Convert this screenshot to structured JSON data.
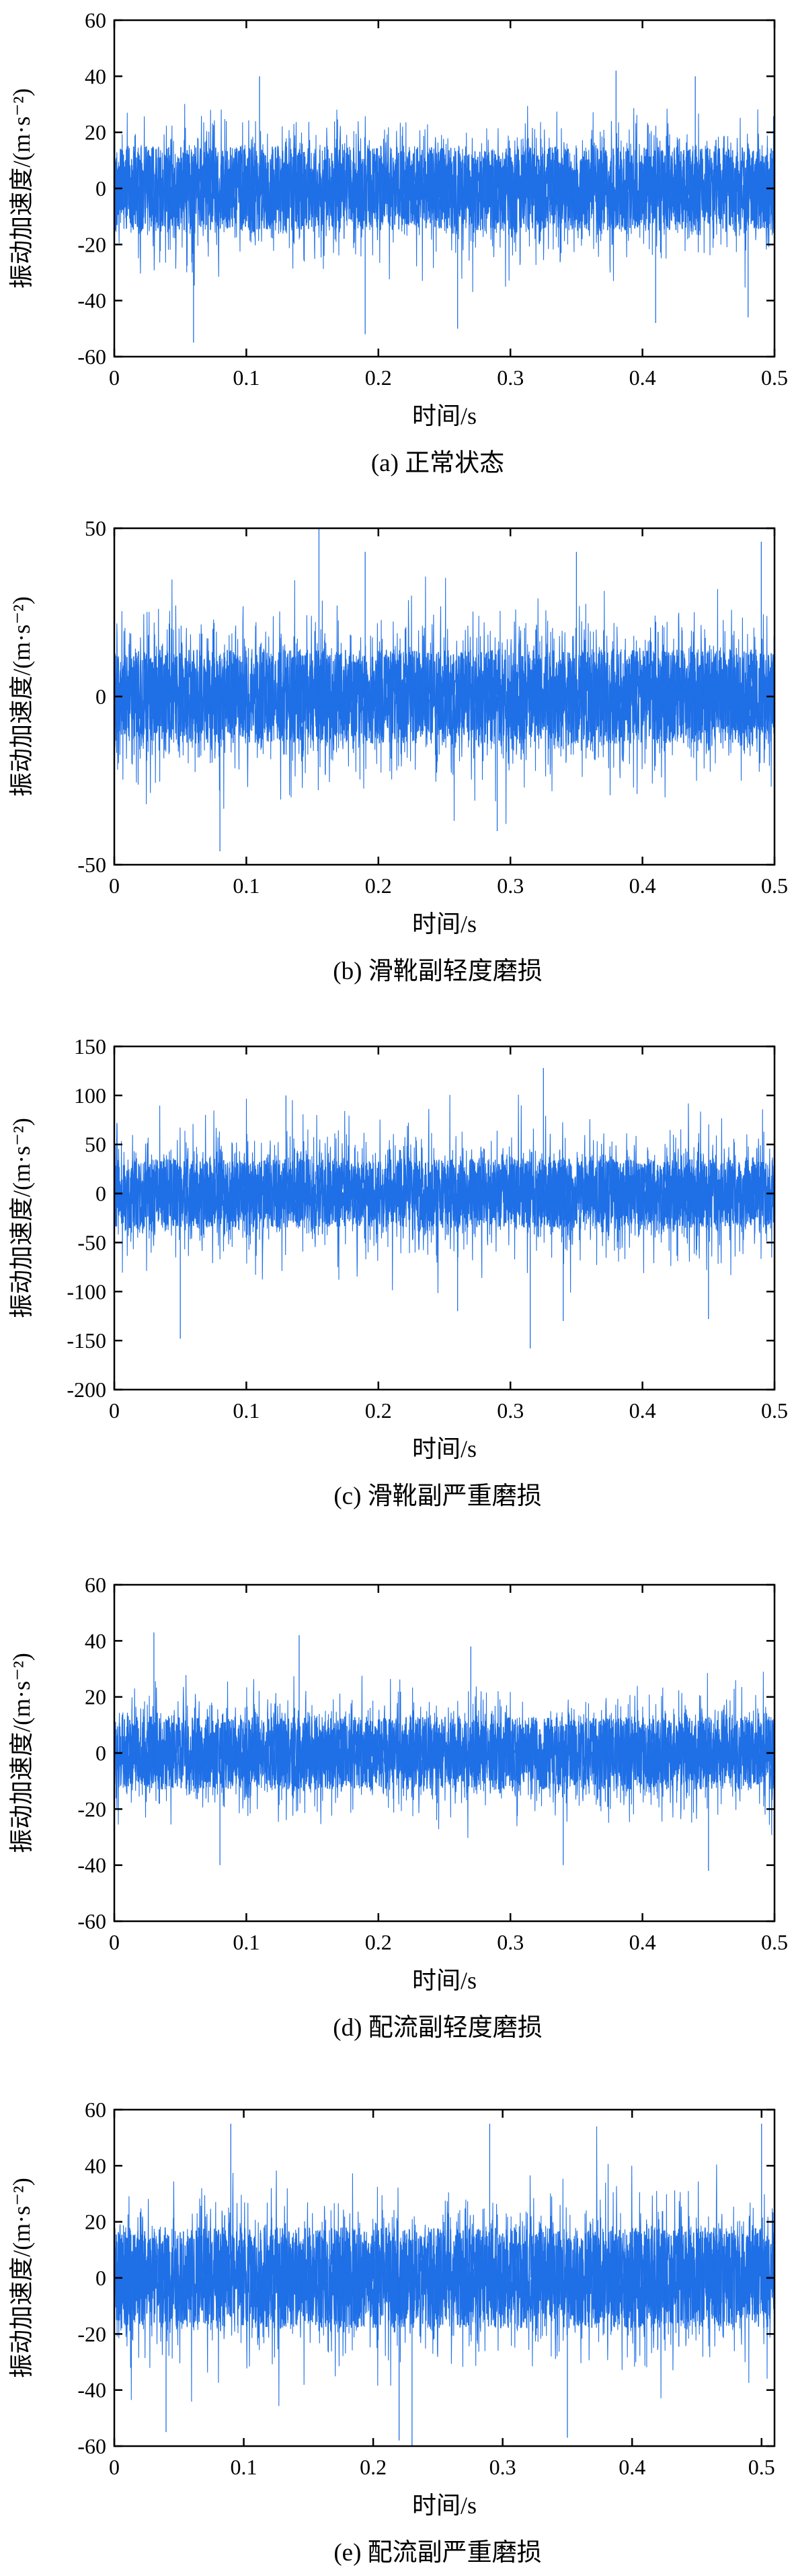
{
  "chart_data": [
    {
      "type": "line",
      "caption": "(a) 正常状态",
      "xlabel": "时间/s",
      "ylabel": "振动加速度/(m·s⁻²)",
      "xlim": [
        0,
        0.5
      ],
      "ylim": [
        -60,
        60
      ],
      "xticks": [
        0,
        0.1,
        0.2,
        0.3,
        0.4,
        0.5
      ],
      "xtick_labels": [
        "0",
        "0.1",
        "0.2",
        "0.3",
        "0.4",
        "0.5"
      ],
      "yticks": [
        -60,
        -40,
        -20,
        0,
        20,
        40,
        60
      ],
      "ytick_labels": [
        "-60",
        "-40",
        "-20",
        "0",
        "20",
        "40",
        "60"
      ],
      "color": "#1f6fe6",
      "series": [
        {
          "x_range": [
            0,
            0.5
          ],
          "sigma": 11,
          "core": 15,
          "y_min": -55,
          "y_max": 42,
          "spikes": [
            [
              0.06,
              -55
            ],
            [
              0.11,
              40
            ],
            [
              0.19,
              -52
            ],
            [
              0.26,
              -50
            ],
            [
              0.38,
              42
            ],
            [
              0.41,
              -48
            ],
            [
              0.44,
              40
            ],
            [
              0.48,
              -46
            ]
          ]
        }
      ]
    },
    {
      "type": "line",
      "caption": "(b) 滑靴副轻度磨损",
      "xlabel": "时间/s",
      "ylabel": "振动加速度/(m·s⁻²)",
      "xlim": [
        0,
        0.5
      ],
      "ylim": [
        -50,
        50
      ],
      "xticks": [
        0,
        0.1,
        0.2,
        0.3,
        0.4,
        0.5
      ],
      "xtick_labels": [
        "0",
        "0.1",
        "0.2",
        "0.3",
        "0.4",
        "0.5"
      ],
      "yticks": [
        -50,
        0,
        50
      ],
      "ytick_labels": [
        "-50",
        "0",
        "50"
      ],
      "color": "#1f6fe6",
      "series": [
        {
          "x_range": [
            0,
            0.5
          ],
          "sigma": 11,
          "core": 14,
          "y_min": -46,
          "y_max": 50,
          "spikes": [
            [
              0.08,
              -46
            ],
            [
              0.155,
              50
            ],
            [
              0.19,
              43
            ],
            [
              0.29,
              -40
            ],
            [
              0.35,
              43
            ],
            [
              0.49,
              46
            ]
          ]
        }
      ]
    },
    {
      "type": "line",
      "caption": "(c) 滑靴副严重磨损",
      "xlabel": "时间/s",
      "ylabel": "振动加速度/(m·s⁻²)",
      "xlim": [
        0,
        0.5
      ],
      "ylim": [
        -200,
        150
      ],
      "xticks": [
        0,
        0.1,
        0.2,
        0.3,
        0.4,
        0.5
      ],
      "xtick_labels": [
        "0",
        "0.1",
        "0.2",
        "0.3",
        "0.4",
        "0.5"
      ],
      "yticks": [
        -200,
        -150,
        -100,
        -50,
        0,
        50,
        100,
        150
      ],
      "ytick_labels": [
        "-200",
        "-150",
        "-100",
        "-50",
        "0",
        "50",
        "100",
        "150"
      ],
      "color": "#1f6fe6",
      "series": [
        {
          "x_range": [
            0,
            0.5
          ],
          "sigma": 30,
          "core": 35,
          "y_min": -158,
          "y_max": 128,
          "spikes": [
            [
              0.05,
              -148
            ],
            [
              0.13,
              100
            ],
            [
              0.26,
              -120
            ],
            [
              0.315,
              -158
            ],
            [
              0.325,
              128
            ],
            [
              0.34,
              -130
            ],
            [
              0.45,
              -128
            ]
          ]
        }
      ]
    },
    {
      "type": "line",
      "caption": "(d) 配流副轻度磨损",
      "xlabel": "时间/s",
      "ylabel": "振动加速度/(m·s⁻²)",
      "xlim": [
        0,
        0.5
      ],
      "ylim": [
        -60,
        60
      ],
      "xticks": [
        0,
        0.1,
        0.2,
        0.3,
        0.4,
        0.5
      ],
      "xtick_labels": [
        "0",
        "0.1",
        "0.2",
        "0.3",
        "0.4",
        "0.5"
      ],
      "yticks": [
        -60,
        -40,
        -20,
        0,
        20,
        40,
        60
      ],
      "ytick_labels": [
        "-60",
        "-40",
        "-20",
        "0",
        "20",
        "40",
        "60"
      ],
      "color": "#1f6fe6",
      "series": [
        {
          "x_range": [
            0,
            0.5
          ],
          "sigma": 9.5,
          "core": 13,
          "y_min": -42,
          "y_max": 43,
          "spikes": [
            [
              0.03,
              43
            ],
            [
              0.08,
              -40
            ],
            [
              0.14,
              42
            ],
            [
              0.27,
              38
            ],
            [
              0.34,
              -40
            ],
            [
              0.45,
              -42
            ]
          ]
        }
      ]
    },
    {
      "type": "line",
      "caption": "(e) 配流副严重磨损",
      "xlabel": "时间/s",
      "ylabel": "振动加速度/(m·s⁻²)",
      "xlim": [
        0,
        0.51
      ],
      "ylim": [
        -60,
        60
      ],
      "xticks": [
        0,
        0.1,
        0.2,
        0.3,
        0.4,
        0.5
      ],
      "xtick_labels": [
        "0",
        "0.1",
        "0.2",
        "0.3",
        "0.4",
        "0.5"
      ],
      "yticks": [
        -60,
        -40,
        -20,
        0,
        20,
        40,
        60
      ],
      "ytick_labels": [
        "-60",
        "-40",
        "-20",
        "0",
        "20",
        "40",
        "60"
      ],
      "color": "#1f6fe6",
      "series": [
        {
          "x_range": [
            0,
            0.51
          ],
          "sigma": 13,
          "core": 18,
          "y_min": -60,
          "y_max": 55,
          "spikes": [
            [
              0.04,
              -55
            ],
            [
              0.09,
              55
            ],
            [
              0.22,
              -58
            ],
            [
              0.23,
              -60
            ],
            [
              0.29,
              55
            ],
            [
              0.35,
              -57
            ],
            [
              0.5,
              55
            ]
          ]
        }
      ]
    }
  ]
}
